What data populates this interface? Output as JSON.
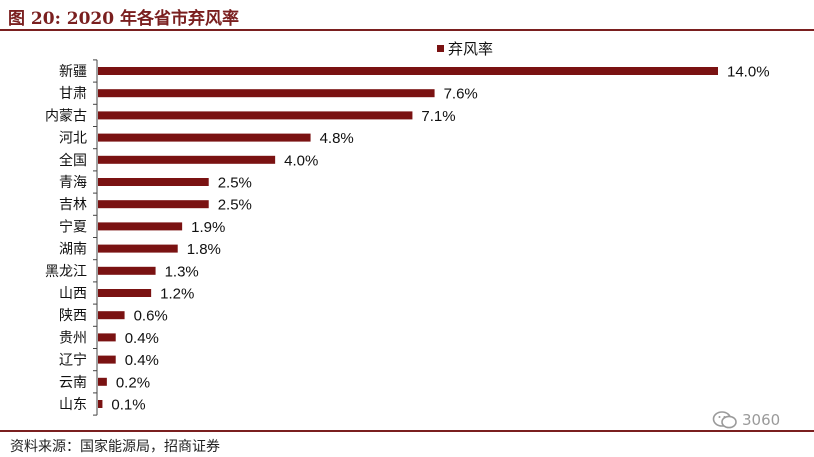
{
  "figure": {
    "title": "图 20:  2020 年各省市弃风率",
    "source": "资料来源：国家能源局，招商证券",
    "watermark": "3060",
    "watermark_icon": "wechat-icon"
  },
  "chart_data": {
    "type": "bar",
    "orientation": "horizontal",
    "categories": [
      "新疆",
      "甘肃",
      "内蒙古",
      "河北",
      "全国",
      "青海",
      "吉林",
      "宁夏",
      "湖南",
      "黑龙江",
      "山西",
      "陕西",
      "贵州",
      "辽宁",
      "云南",
      "山东"
    ],
    "series": [
      {
        "name": "弃风率",
        "values": [
          14.0,
          7.6,
          7.1,
          4.8,
          4.0,
          2.5,
          2.5,
          1.9,
          1.8,
          1.3,
          1.2,
          0.6,
          0.4,
          0.4,
          0.2,
          0.1
        ],
        "labels": [
          "14.0%",
          "7.6%",
          "7.1%",
          "4.8%",
          "4.0%",
          "2.5%",
          "2.5%",
          "1.9%",
          "1.8%",
          "1.3%",
          "1.2%",
          "0.6%",
          "0.4%",
          "0.4%",
          "0.2%",
          "0.1%"
        ]
      }
    ],
    "xlim": [
      0,
      14.0
    ],
    "grid": false,
    "legend": "top-center",
    "bar_color": "#7a1212"
  }
}
